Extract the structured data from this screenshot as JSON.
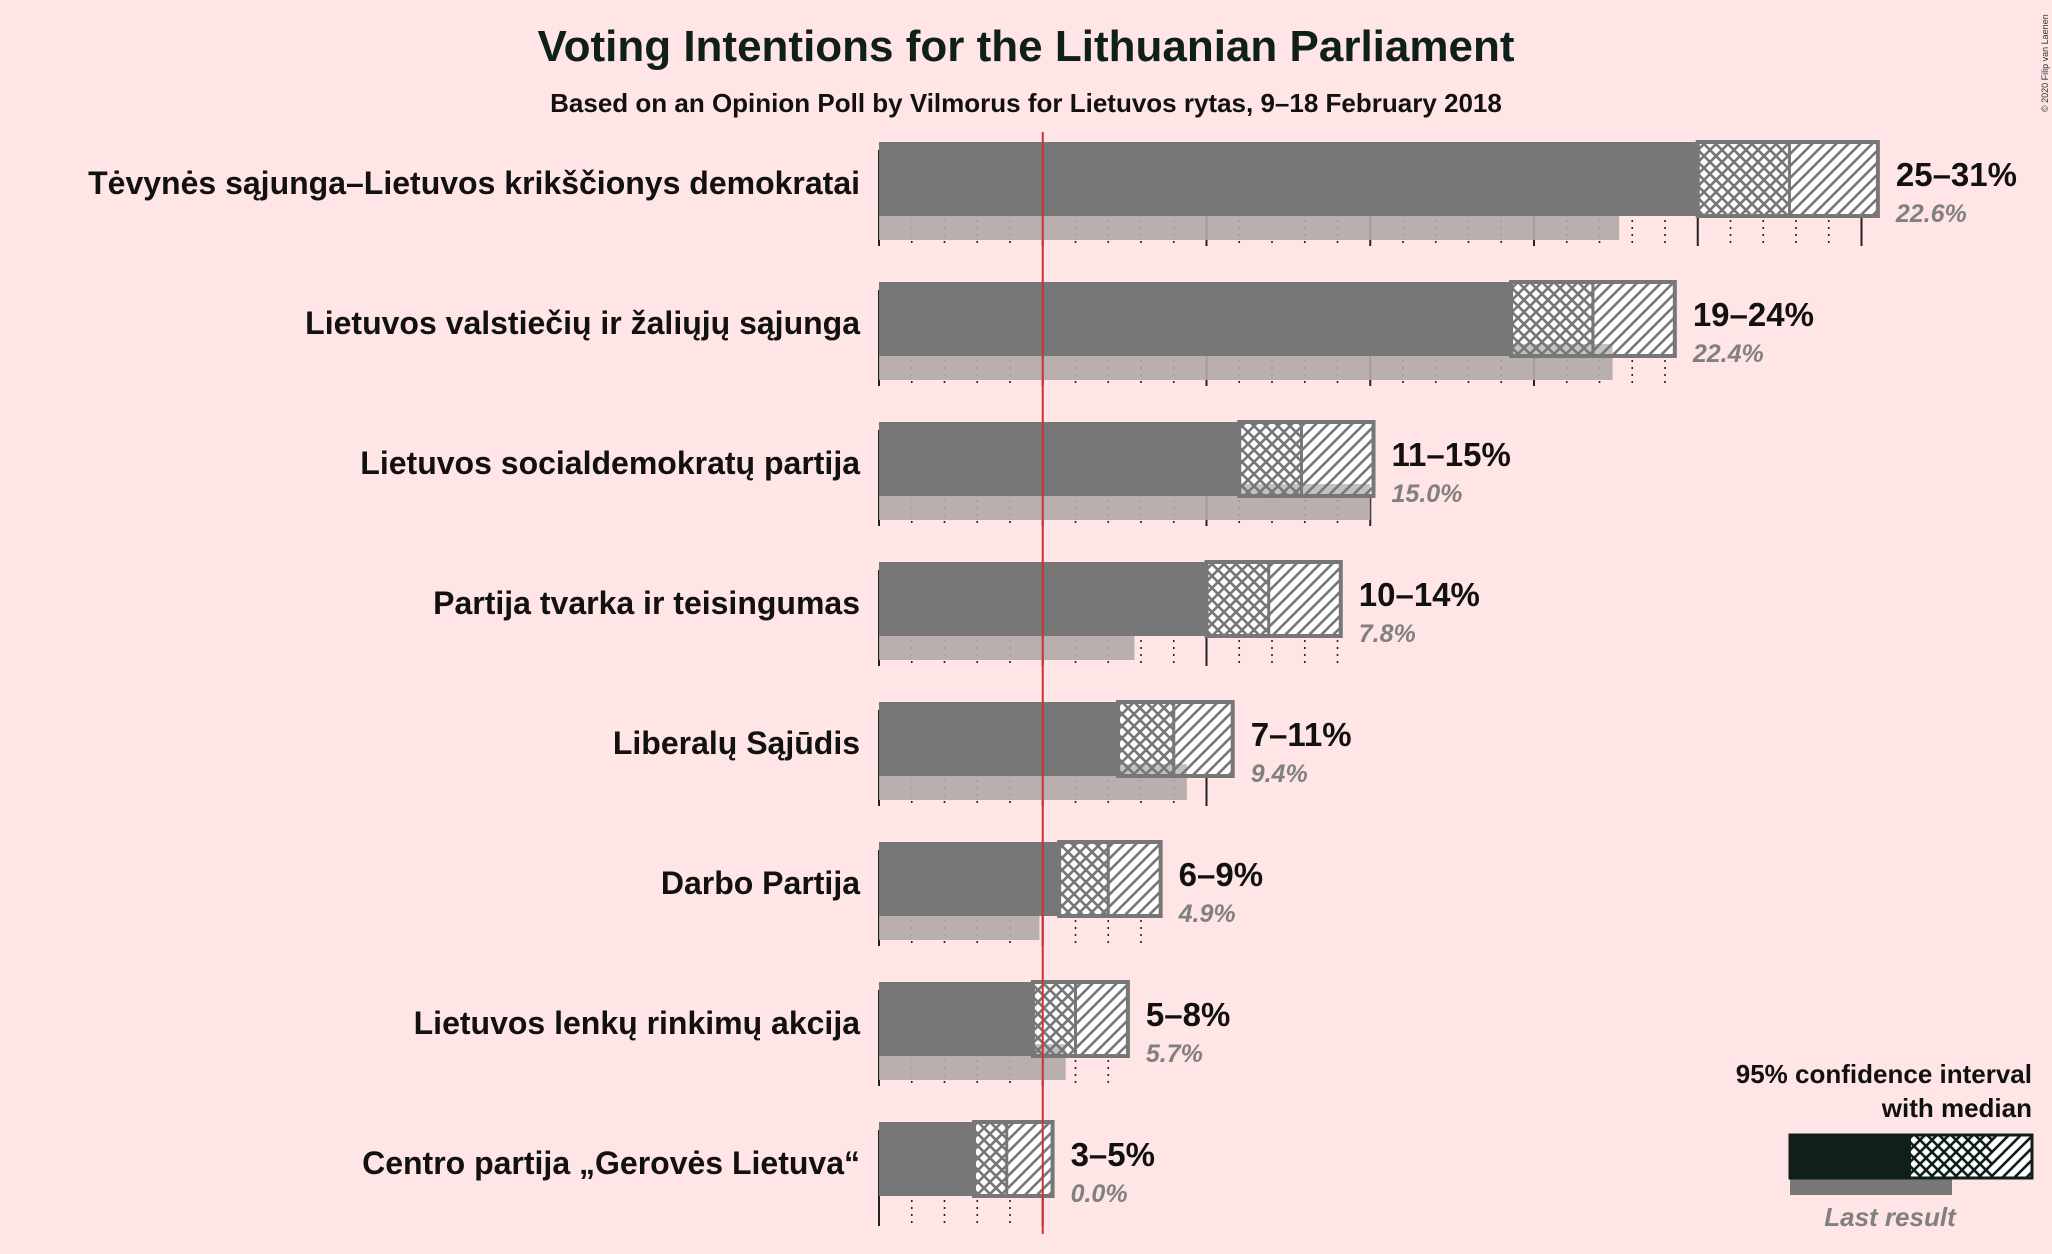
{
  "title": "Voting Intentions for the Lithuanian Parliament",
  "subtitle": "Based on an Opinion Poll by Vilmorus for Lietuvos rytas, 9–18 February 2018",
  "copyright": "© 2020 Filip van Laenen",
  "legend": {
    "ci_text_line1": "95% confidence interval",
    "ci_text_line2": "with median",
    "last_result": "Last result"
  },
  "colors": {
    "background": "#ffe5e5",
    "bar": "#777777",
    "last_result": "#b3a8a8",
    "threshold": "#cc3333",
    "legend_bar": "#0f1f1a"
  },
  "chart_data": {
    "type": "bar",
    "orientation": "horizontal",
    "xlim": [
      0,
      31
    ],
    "threshold": 5,
    "categories": [
      "Tėvynės sąjunga–Lietuvos krikščionys demokratai",
      "Lietuvos valstiečių ir žaliųjų sąjunga",
      "Lietuvos socialdemokratų partija",
      "Partija tvarka ir teisingumas",
      "Liberalų Sąjūdis",
      "Darbo Partija",
      "Lietuvos lenkų rinkimų akcija",
      "Centro partija „Gerovės Lietuva“"
    ],
    "ci_low": [
      25,
      19.3,
      11,
      10,
      7.3,
      5.5,
      4.7,
      2.9
    ],
    "ci_mid": [
      27.8,
      21.8,
      12.9,
      11.9,
      9,
      7,
      6,
      3.9
    ],
    "ci_high": [
      30.5,
      24.3,
      15.1,
      14.1,
      10.8,
      8.6,
      7.6,
      5.3
    ],
    "range_labels": [
      "25–31%",
      "19–24%",
      "11–15%",
      "10–14%",
      "7–11%",
      "6–9%",
      "5–8%",
      "3–5%"
    ],
    "last_result": [
      22.6,
      22.4,
      15.0,
      7.8,
      9.4,
      4.9,
      5.7,
      0.0
    ],
    "last_result_labels": [
      "22.6%",
      "22.4%",
      "15.0%",
      "7.8%",
      "9.4%",
      "4.9%",
      "5.7%",
      "0.0%"
    ]
  }
}
